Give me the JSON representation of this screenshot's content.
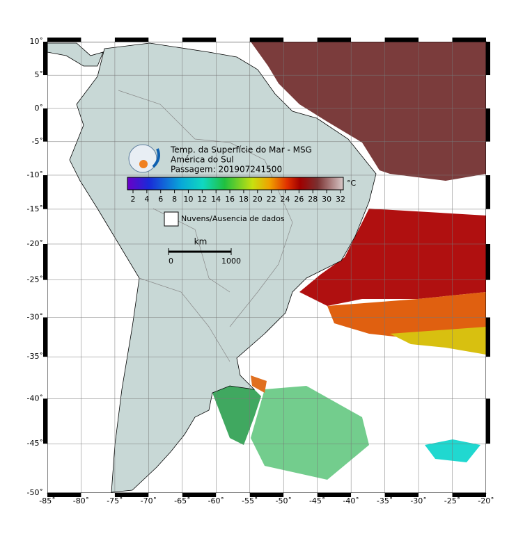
{
  "map": {
    "title": "Temp. da Superfície do Mar - MSG",
    "region": "América do Sul",
    "pass": "Passagem: 201907241500",
    "colorbar": {
      "ticks": [
        2,
        4,
        6,
        8,
        10,
        12,
        14,
        16,
        18,
        20,
        22,
        24,
        26,
        28,
        30,
        32
      ],
      "unit": "°C"
    },
    "legend": "Nuvens/Ausencia de dados",
    "scale": {
      "unit": "km",
      "ticks": [
        0,
        1000
      ]
    }
  },
  "lon_ticks": [
    {
      "value": -85,
      "label": "-85˚"
    },
    {
      "value": -80,
      "label": "-80˚"
    },
    {
      "value": -75,
      "label": "-75˚"
    },
    {
      "value": -70,
      "label": "-70˚"
    },
    {
      "value": -65,
      "label": "-65˚"
    },
    {
      "value": -60,
      "label": "-60˚"
    },
    {
      "value": -55,
      "label": "-55˚"
    },
    {
      "value": -50,
      "label": "-50˚"
    },
    {
      "value": -45,
      "label": "-45˚"
    },
    {
      "value": -40,
      "label": "-40˚"
    },
    {
      "value": -35,
      "label": "-35˚"
    },
    {
      "value": -30,
      "label": "-30˚"
    },
    {
      "value": -25,
      "label": "-25˚"
    },
    {
      "value": -20,
      "label": "-20˚"
    }
  ],
  "lat_ticks": [
    {
      "value": 10,
      "label": "10˚"
    },
    {
      "value": 5,
      "label": "5˚"
    },
    {
      "value": 0,
      "label": "0˚"
    },
    {
      "value": -5,
      "label": "-5˚"
    },
    {
      "value": -10,
      "label": "-10˚"
    },
    {
      "value": -15,
      "label": "-15˚"
    },
    {
      "value": -20,
      "label": "-20˚"
    },
    {
      "value": -25,
      "label": "-25˚"
    },
    {
      "value": -30,
      "label": "-30˚"
    },
    {
      "value": -35,
      "label": "-35˚"
    },
    {
      "value": -40,
      "label": "-40˚"
    },
    {
      "value": -45,
      "label": "-45˚"
    },
    {
      "value": -50,
      "label": "-50˚"
    }
  ]
}
